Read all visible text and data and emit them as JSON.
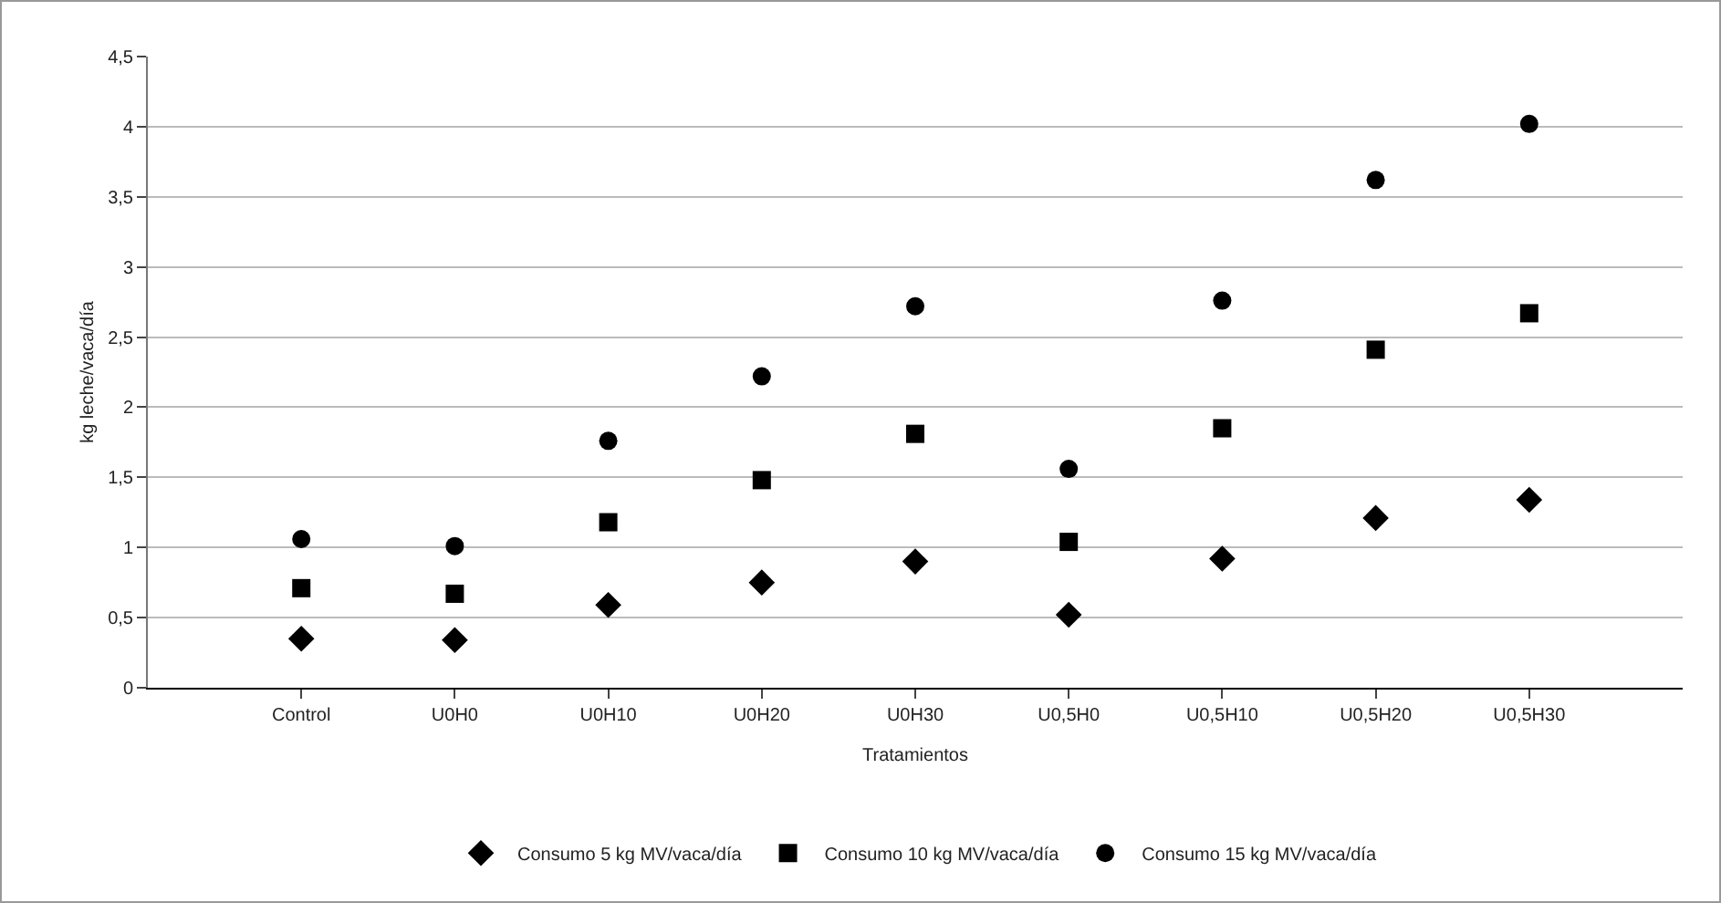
{
  "chart_data": {
    "type": "scatter",
    "xlabel": "Tratamientos",
    "ylabel": "kg leche/vaca/día",
    "categories": [
      "Control",
      "U0H0",
      "U0H10",
      "U0H20",
      "U0H30",
      "U0,5H0",
      "U0,5H10",
      "U0,5H20",
      "U0,5H30"
    ],
    "series": [
      {
        "name": "Consumo 5 kg MV/vaca/día",
        "color": "#000000",
        "marker": "diamond",
        "values": [
          0.35,
          0.34,
          0.59,
          0.75,
          0.9,
          0.52,
          0.92,
          1.21,
          1.34
        ]
      },
      {
        "name": "Consumo 10 kg MV/vaca/día",
        "color": "#000000",
        "marker": "square",
        "values": [
          0.71,
          0.67,
          1.18,
          1.48,
          1.81,
          1.04,
          1.85,
          2.41,
          2.67
        ]
      },
      {
        "name": "Consumo 15 kg MV/vaca/día",
        "color": "#000000",
        "marker": "circle",
        "values": [
          1.06,
          1.01,
          1.76,
          2.22,
          2.72,
          1.56,
          2.76,
          3.62,
          4.02
        ]
      }
    ],
    "ylim": [
      0,
      4.5
    ],
    "yticks": [
      0,
      {
        "value": 0.5,
        "label": "0,5"
      },
      1,
      {
        "value": 1.5,
        "label": "1,5"
      },
      2,
      {
        "value": 2.5,
        "label": "2,5"
      },
      3,
      {
        "value": 3.5,
        "label": "3,5"
      },
      4,
      {
        "value": 4.5,
        "label": "4,5"
      }
    ],
    "grid": "y",
    "legend": "bottom"
  }
}
